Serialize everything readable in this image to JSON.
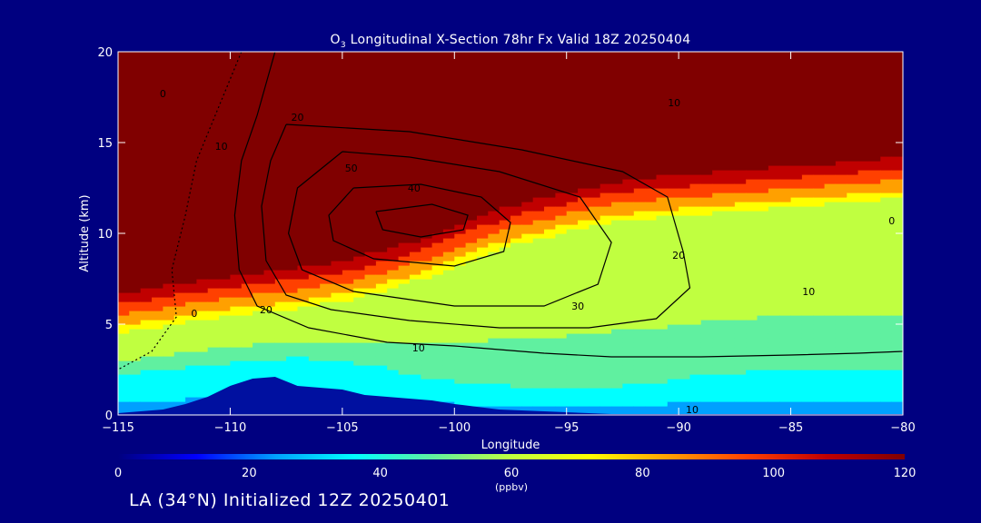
{
  "title": {
    "species": "O",
    "species_subscript": "3",
    "text": "Longitudinal X-Section 78hr  Fx Valid 18Z 20250404"
  },
  "footer": "LA (34°N) Initialized 12Z 20250401",
  "chart_data": {
    "type": "heatmap",
    "description_free": true,
    "xlabel": "Longitude",
    "ylabel": "Altitude (km)",
    "xlim": [
      -115,
      -80
    ],
    "ylim": [
      0,
      20
    ],
    "x_ticks": [
      "−115",
      "−110",
      "−105",
      "−100",
      "−95",
      "−90",
      "−85",
      "−80"
    ],
    "x_tick_values": [
      -115,
      -110,
      -105,
      -100,
      -95,
      -90,
      -85,
      -80
    ],
    "y_ticks": [
      "0",
      "5",
      "10",
      "15",
      "20"
    ],
    "y_tick_values": [
      0,
      5,
      10,
      15,
      20
    ],
    "colorbar": {
      "label": "(ppbv)",
      "min": 0,
      "max": 120,
      "ticks": [
        "0",
        "20",
        "40",
        "60",
        "80",
        "100",
        "120"
      ],
      "tick_values": [
        0,
        20,
        40,
        60,
        80,
        100,
        120
      ],
      "colors": [
        "#000080",
        "#0000ff",
        "#00a0ff",
        "#00ffff",
        "#60f0a0",
        "#c0ff40",
        "#ffff00",
        "#ffa000",
        "#ff4000",
        "#c00000",
        "#800000"
      ]
    },
    "filled_field": {
      "unit": "ppbv",
      "columns_lon": [
        -115,
        -113,
        -111,
        -109,
        -107,
        -105,
        -103,
        -101,
        -99,
        -97,
        -95,
        -93,
        -91,
        -89,
        -87,
        -85,
        -83,
        -81,
        -80
      ],
      "tropopause_km": [
        7.0,
        7.4,
        7.8,
        8.1,
        8.4,
        8.8,
        9.4,
        10.2,
        11.2,
        12.0,
        12.6,
        13.1,
        13.4,
        13.6,
        13.8,
        14.0,
        14.2,
        14.4,
        14.5
      ],
      "surface_layer_top_km": [
        2.2,
        2.5,
        2.8,
        3.0,
        3.2,
        3.0,
        2.6,
        2.0,
        1.8,
        1.6,
        1.5,
        1.6,
        1.8,
        2.2,
        2.4,
        2.4,
        2.4,
        2.4,
        2.4
      ],
      "stratosphere_value": 120,
      "upper_troposphere_value": 70,
      "mid_troposphere_value": 50,
      "lower_troposphere_value": 40,
      "boundary_layer_value": 25
    },
    "terrain": {
      "lon": [
        -115,
        -114,
        -113,
        -112,
        -111,
        -110,
        -109,
        -108,
        -107,
        -106,
        -105,
        -104,
        -103,
        -102,
        -101,
        -100,
        -99,
        -98,
        -97,
        -96,
        -95,
        -94,
        -93,
        -92,
        -91,
        -90,
        -89,
        -88,
        -87,
        -86,
        -85,
        -84,
        -83,
        -82,
        -81,
        -80
      ],
      "alt_km": [
        0.1,
        0.2,
        0.3,
        0.6,
        1.0,
        1.6,
        2.0,
        2.1,
        1.6,
        1.5,
        1.4,
        1.1,
        1.0,
        0.9,
        0.8,
        0.6,
        0.45,
        0.3,
        0.25,
        0.2,
        0.15,
        0.1,
        0.05,
        0.05,
        0.05,
        0.05,
        0.05,
        0.05,
        0.05,
        0.05,
        0.05,
        0.05,
        0.05,
        0.05,
        0.05,
        0.05
      ]
    },
    "contours": [
      {
        "level": 0,
        "label": "0",
        "points": [
          [
            -109.5,
            20
          ],
          [
            -110.5,
            17
          ],
          [
            -111.5,
            14
          ],
          [
            -112,
            11
          ],
          [
            -112.6,
            8
          ],
          [
            -112.4,
            5.4
          ],
          [
            -113.5,
            3.5
          ],
          [
            -115,
            2.5
          ]
        ]
      },
      {
        "level": 10,
        "label": "10",
        "points": [
          [
            -108,
            20
          ],
          [
            -108.8,
            16.5
          ],
          [
            -109.5,
            14
          ],
          [
            -109.8,
            11
          ],
          [
            -109.6,
            8
          ],
          [
            -108.8,
            6
          ],
          [
            -106.5,
            4.8
          ],
          [
            -103,
            4
          ],
          [
            -100,
            3.8
          ],
          [
            -96,
            3.4
          ],
          [
            -93,
            3.2
          ],
          [
            -89,
            3.2
          ],
          [
            -85,
            3.3
          ],
          [
            -82,
            3.4
          ],
          [
            -80,
            3.5
          ]
        ]
      },
      {
        "level": 20,
        "label": "20",
        "points": [
          [
            -107.5,
            16
          ],
          [
            -108.2,
            14
          ],
          [
            -108.6,
            11.5
          ],
          [
            -108.4,
            8.5
          ],
          [
            -107.5,
            6.6
          ],
          [
            -105.5,
            5.8
          ],
          [
            -102,
            5.2
          ],
          [
            -98,
            4.8
          ],
          [
            -94,
            4.8
          ],
          [
            -91,
            5.3
          ],
          [
            -89.5,
            7
          ],
          [
            -89.8,
            9
          ],
          [
            -90.5,
            12
          ],
          [
            -92.5,
            13.4
          ],
          [
            -97,
            14.6
          ],
          [
            -102,
            15.6
          ],
          [
            -107.5,
            16
          ]
        ]
      },
      {
        "level": 30,
        "label": "30",
        "points": [
          [
            -105,
            14.5
          ],
          [
            -107,
            12.5
          ],
          [
            -107.4,
            10
          ],
          [
            -106.8,
            8
          ],
          [
            -104.5,
            6.8
          ],
          [
            -100,
            6
          ],
          [
            -96,
            6
          ],
          [
            -93.6,
            7.2
          ],
          [
            -93,
            9.5
          ],
          [
            -94.4,
            12
          ],
          [
            -98,
            13.4
          ],
          [
            -102,
            14.2
          ],
          [
            -105,
            14.5
          ]
        ]
      },
      {
        "level": 40,
        "label": "40",
        "points": [
          [
            -104.5,
            12.5
          ],
          [
            -105.6,
            11
          ],
          [
            -105.4,
            9.6
          ],
          [
            -103.6,
            8.6
          ],
          [
            -100,
            8.2
          ],
          [
            -97.8,
            9
          ],
          [
            -97.5,
            10.6
          ],
          [
            -98.8,
            12
          ],
          [
            -101.5,
            12.7
          ],
          [
            -104.5,
            12.5
          ]
        ]
      },
      {
        "level": 50,
        "label": "50",
        "points": [
          [
            -103.5,
            11.2
          ],
          [
            -103.2,
            10.2
          ],
          [
            -101.5,
            9.8
          ],
          [
            -99.6,
            10.2
          ],
          [
            -99.4,
            11
          ],
          [
            -101,
            11.6
          ],
          [
            -103.5,
            11.2
          ]
        ]
      }
    ],
    "contour_labels": [
      {
        "text": "0",
        "lon": -113.0,
        "alt": 17.5
      },
      {
        "text": "10",
        "lon": -110.4,
        "alt": 14.6
      },
      {
        "text": "20",
        "lon": -107.0,
        "alt": 16.2
      },
      {
        "text": "50",
        "lon": -104.6,
        "alt": 13.4
      },
      {
        "text": "40",
        "lon": -101.8,
        "alt": 12.3
      },
      {
        "text": "10",
        "lon": -90.2,
        "alt": 17.0
      },
      {
        "text": "20",
        "lon": -90.0,
        "alt": 8.6
      },
      {
        "text": "30",
        "lon": -94.5,
        "alt": 5.8
      },
      {
        "text": "20",
        "lon": -108.4,
        "alt": 5.6
      },
      {
        "text": "10",
        "lon": -101.6,
        "alt": 3.5
      },
      {
        "text": "10",
        "lon": -84.2,
        "alt": 6.6
      },
      {
        "text": "0",
        "lon": -80.5,
        "alt": 10.5
      },
      {
        "text": "0",
        "lon": -111.6,
        "alt": 5.4
      },
      {
        "text": "10",
        "lon": -89.4,
        "alt": 0.1
      }
    ]
  }
}
